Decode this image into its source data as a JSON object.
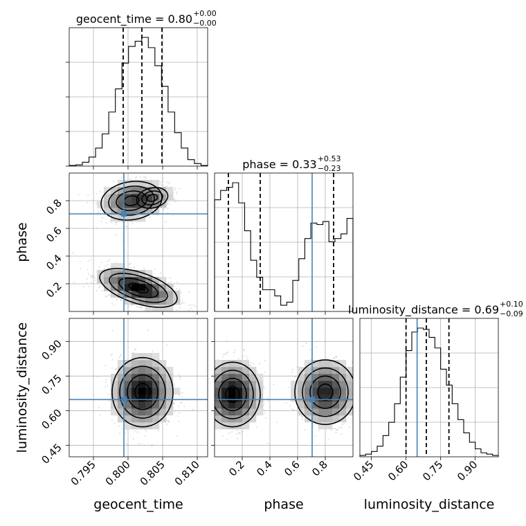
{
  "chart_data": {
    "type": "corner",
    "parameters": [
      "geocent_time",
      "phase",
      "luminosity_distance"
    ],
    "truths": {
      "geocent_time": 0.7994,
      "phase": 0.705,
      "luminosity_distance": 0.648
    },
    "titles": [
      {
        "param": "geocent_time",
        "main": "geocent_time = 0.80",
        "plus": "+0.00",
        "minus": "−0.00"
      },
      {
        "param": "phase",
        "main": "phase = 0.33",
        "plus": "+0.53",
        "minus": "−0.23"
      },
      {
        "param": "luminosity_distance",
        "main": "luminosity_distance = 0.69",
        "plus": "+0.10",
        "minus": "−0.09"
      }
    ],
    "ranges": {
      "geocent_time": [
        0.7915,
        0.8115
      ],
      "phase": [
        0.0,
        1.0
      ],
      "luminosity_distance": [
        0.4,
        1.0
      ]
    },
    "ticks": {
      "geocent_time": [
        0.795,
        0.8,
        0.805,
        0.81
      ],
      "phase": [
        0.2,
        0.4,
        0.6,
        0.8
      ],
      "luminosity_distance": [
        0.45,
        0.6,
        0.75,
        0.9
      ]
    },
    "tick_labels": {
      "geocent_time": [
        "0.795",
        "0.800",
        "0.805",
        "0.810"
      ],
      "phase": [
        "0.2",
        "0.4",
        "0.6",
        "0.8"
      ],
      "luminosity_distance": [
        "0.45",
        "0.60",
        "0.75",
        "0.90"
      ]
    },
    "quantiles": {
      "geocent_time": [
        0.7993,
        0.802,
        0.8049
      ],
      "phase": [
        0.1,
        0.33,
        0.86
      ],
      "luminosity_distance": [
        0.6,
        0.688,
        0.786
      ]
    },
    "histograms": {
      "geocent_time": [
        0.005,
        0.01,
        0.03,
        0.07,
        0.14,
        0.25,
        0.42,
        0.6,
        0.8,
        0.93,
        0.97,
        1.0,
        0.92,
        0.78,
        0.62,
        0.42,
        0.26,
        0.14,
        0.05,
        0.02,
        0.005
      ],
      "phase": [
        0.72,
        0.78,
        0.8,
        0.83,
        0.7,
        0.52,
        0.33,
        0.22,
        0.14,
        0.14,
        0.1,
        0.04,
        0.06,
        0.2,
        0.34,
        0.47,
        0.57,
        0.56,
        0.58,
        0.45,
        0.47,
        0.5,
        0.6
      ],
      "luminosity_distance": [
        0.01,
        0.02,
        0.04,
        0.08,
        0.16,
        0.26,
        0.4,
        0.6,
        0.8,
        0.94,
        0.97,
        0.96,
        0.9,
        0.82,
        0.66,
        0.54,
        0.4,
        0.28,
        0.18,
        0.11,
        0.06,
        0.03,
        0.02,
        0.01
      ]
    },
    "grid": true
  }
}
